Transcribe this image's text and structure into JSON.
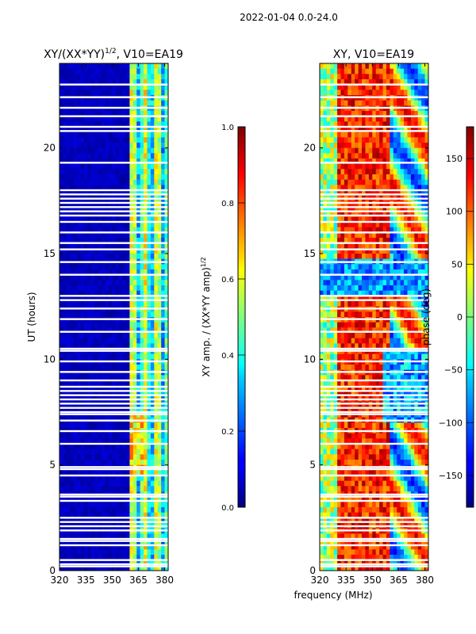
{
  "figure": {
    "suptitle": "2022-01-04 0.0-24.0",
    "xlabel_shared": "frequency (MHz)"
  },
  "chart_data": [
    {
      "type": "heatmap",
      "title": "XY/(XX*YY)$^{1/2}$, V10=EA19",
      "title_main": "XY/(XX*YY)",
      "title_sup": "1/2",
      "title_tail": ", V10=EA19",
      "xlabel": "",
      "ylabel": "UT (hours)",
      "xlim": [
        320,
        382
      ],
      "ylim": [
        0,
        24
      ],
      "xticks": [
        "320",
        "335",
        "350",
        "365",
        "380"
      ],
      "xtick_values": [
        320,
        335,
        350,
        365,
        380
      ],
      "yticks": [
        "0",
        "5",
        "10",
        "15",
        "20"
      ],
      "ytick_values": [
        0,
        5,
        10,
        15,
        20
      ],
      "colormap": "jet",
      "description_values": "normalized XY amplitude, mostly near 0 below 360 MHz, 0.2-0.7 in 360-380 MHz band",
      "colorbar": {
        "label_main": "XY amp. / (XX*YY amp)",
        "label_sup": "1/2",
        "range": [
          0.0,
          1.0
        ],
        "ticks": [
          "0.0",
          "0.2",
          "0.4",
          "0.6",
          "0.8",
          "1.0"
        ],
        "tick_values": [
          0.0,
          0.2,
          0.4,
          0.6,
          0.8,
          1.0
        ]
      },
      "flagged_ut_hours": [
        0.2,
        0.3,
        0.5,
        1.2,
        1.4,
        1.5,
        1.9,
        2.1,
        2.3,
        2.5,
        3.3,
        3.5,
        3.6,
        4.5,
        4.8,
        4.9,
        6.0,
        6.6,
        7.1,
        7.4,
        7.5,
        7.7,
        7.9,
        8.1,
        8.3,
        8.5,
        8.7,
        9.0,
        9.4,
        9.9,
        10.4,
        10.5,
        11.3,
        11.9,
        12.4,
        12.8,
        13.0,
        14.0,
        14.6,
        15.2,
        15.5,
        16.0,
        16.5,
        16.8,
        17.0,
        17.2,
        17.4,
        17.6,
        17.8,
        18.0,
        19.3,
        20.8,
        21.0,
        21.5,
        21.9,
        22.4,
        23.0
      ]
    },
    {
      "type": "heatmap",
      "title": "XY, V10=EA19",
      "xlabel": "frequency (MHz)",
      "ylabel": "",
      "xlim": [
        320,
        382
      ],
      "ylim": [
        0,
        24
      ],
      "xticks": [
        "320",
        "335",
        "350",
        "365",
        "380"
      ],
      "xtick_values": [
        320,
        335,
        350,
        365,
        380
      ],
      "yticks": [
        "0",
        "5",
        "10",
        "15",
        "20"
      ],
      "ytick_values": [
        0,
        5,
        10,
        15,
        20
      ],
      "colormap": "jet",
      "description_values": "XY phase in degrees, -180 to 180, noisy with red/yellow dominance between 330 and 360 MHz",
      "colorbar": {
        "label": "phase (deg)",
        "range": [
          -180,
          180
        ],
        "ticks": [
          "−150",
          "−100",
          "−50",
          "0",
          "50",
          "100",
          "150"
        ],
        "tick_values": [
          -150,
          -100,
          -50,
          0,
          50,
          100,
          150
        ]
      },
      "flagged_ut_hours": [
        0.2,
        0.3,
        0.5,
        1.2,
        1.4,
        1.5,
        1.9,
        2.1,
        2.3,
        2.5,
        3.3,
        3.5,
        3.6,
        4.5,
        4.8,
        4.9,
        6.0,
        6.6,
        7.1,
        7.4,
        7.5,
        7.7,
        7.9,
        8.1,
        8.3,
        8.5,
        8.7,
        9.0,
        9.4,
        9.9,
        10.4,
        10.5,
        11.3,
        11.9,
        12.4,
        12.8,
        13.0,
        14.0,
        14.6,
        15.2,
        15.5,
        16.0,
        16.5,
        16.8,
        17.0,
        17.2,
        17.4,
        17.6,
        17.8,
        18.0,
        19.3,
        20.8,
        21.0,
        21.5,
        21.9,
        22.4,
        23.0
      ]
    }
  ]
}
